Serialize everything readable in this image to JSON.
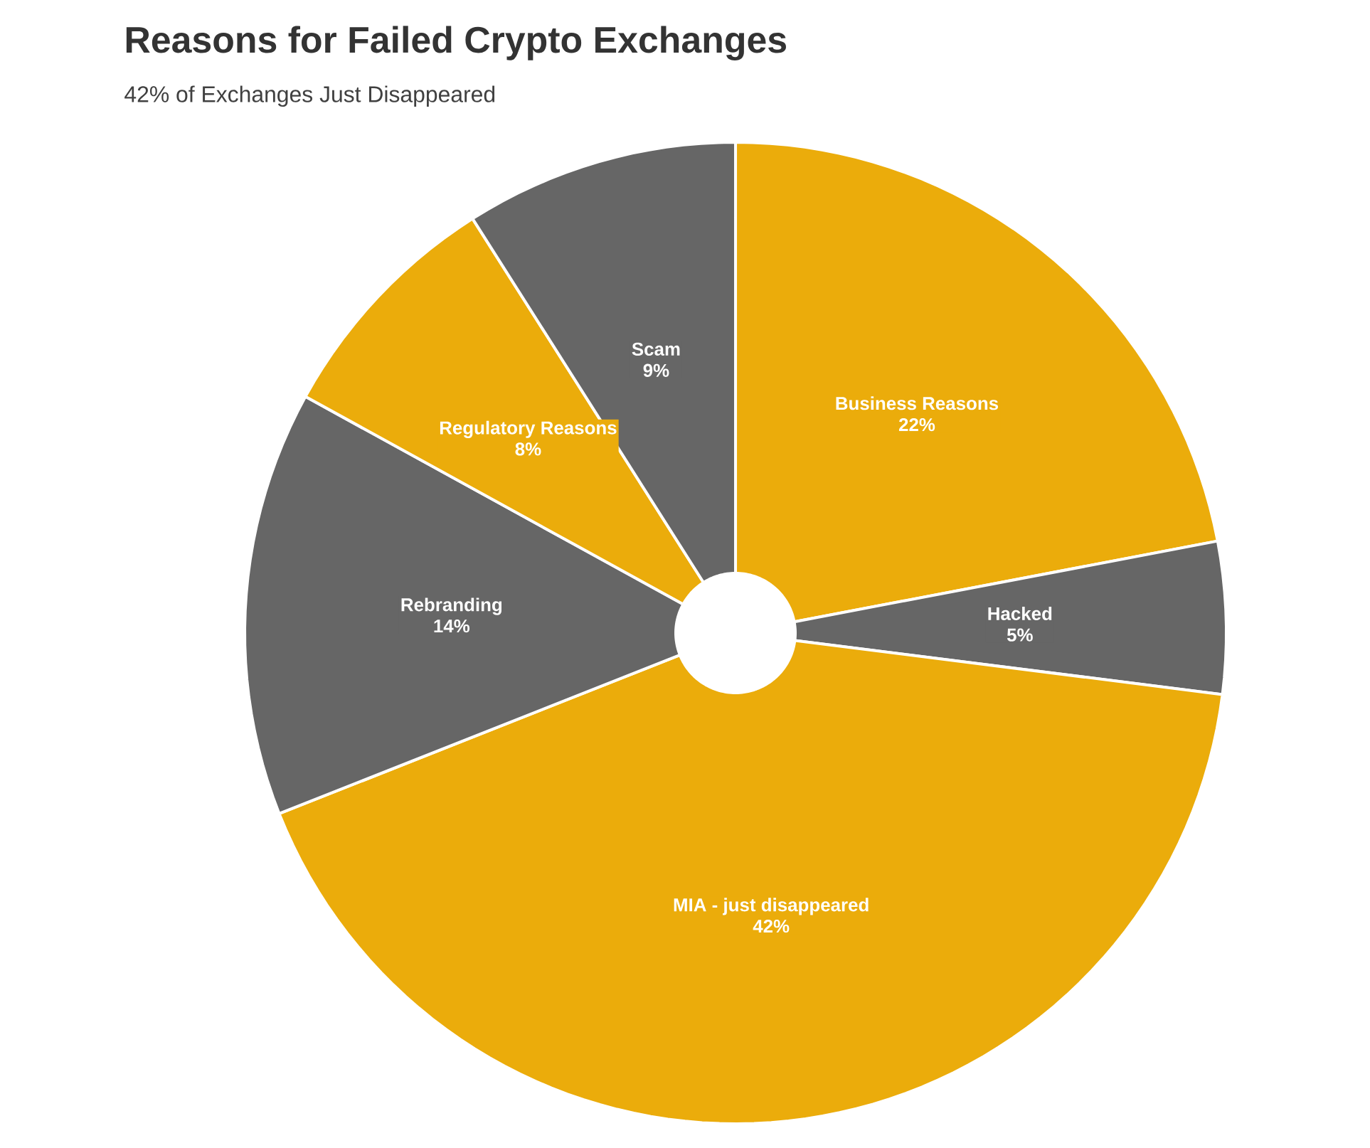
{
  "chart_data": {
    "type": "donut",
    "title": "Reasons for Failed Crypto Exchanges",
    "subtitle": "42% of Exchanges Just Disappeared",
    "categories": [
      "Business Reasons",
      "Hacked",
      "MIA - just disappeared",
      "Rebranding",
      "Regulatory Reasons",
      "Scam"
    ],
    "values": [
      22,
      5,
      42,
      14,
      8,
      9
    ],
    "value_labels": [
      "22%",
      "5%",
      "42%",
      "14%",
      "8%",
      "9%"
    ],
    "colors": [
      "#ebac0b",
      "#666666",
      "#ebac0b",
      "#666666",
      "#ebac0b",
      "#666666"
    ]
  }
}
